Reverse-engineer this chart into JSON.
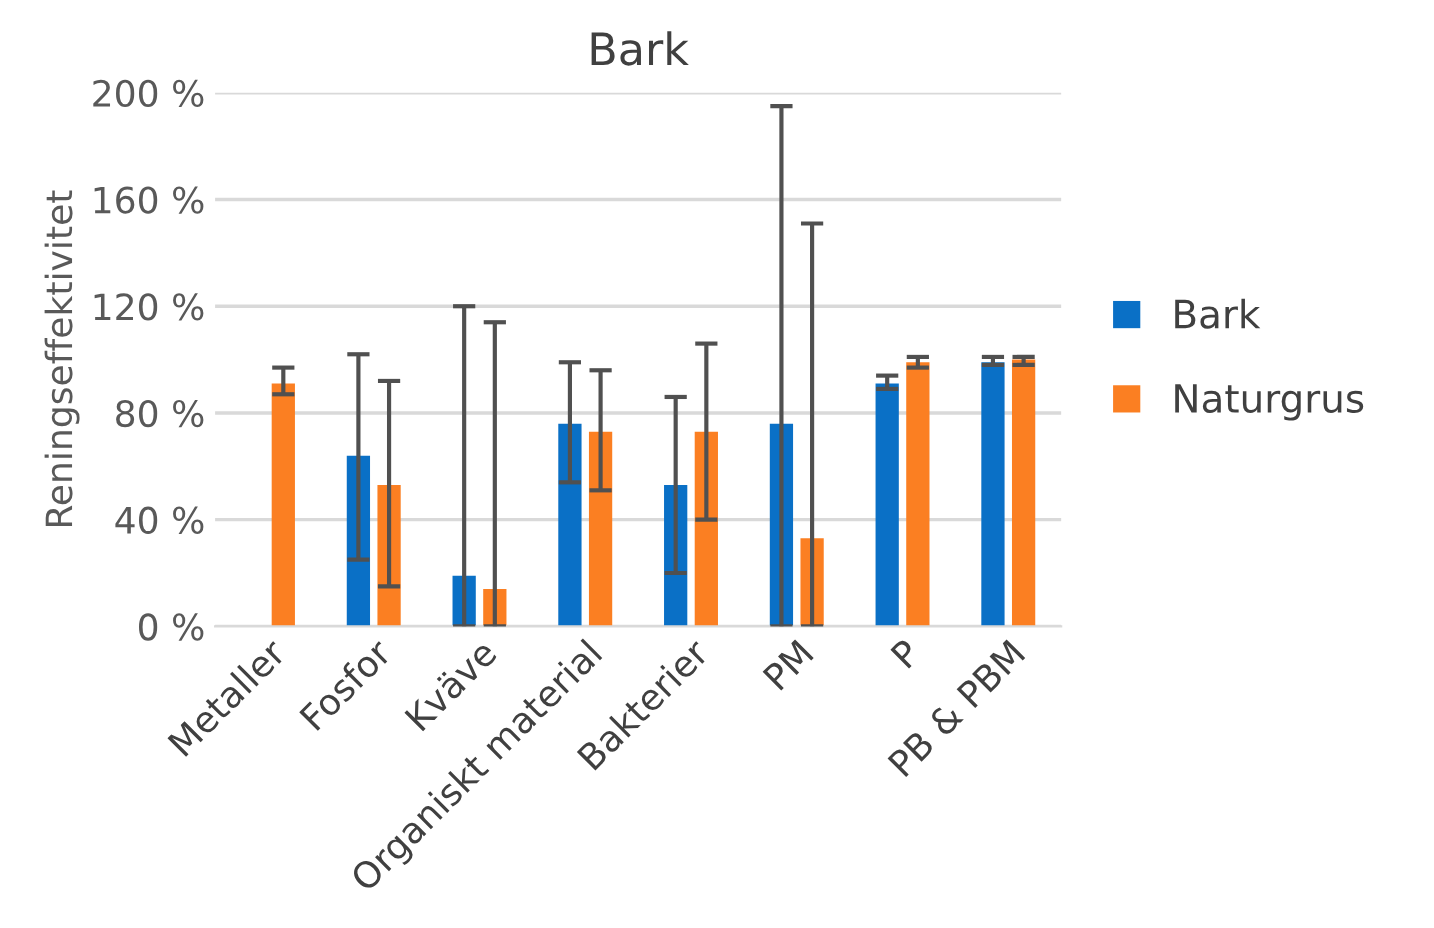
{
  "chart_data": {
    "type": "bar",
    "title": "Bark",
    "ylabel": "Reningseffektivitet",
    "categories": [
      "Metaller",
      "Fosfor",
      "Kväve",
      "Organiskt material",
      "Bakterier",
      "PM",
      "P",
      "PB & PBM"
    ],
    "series": [
      {
        "name": "Bark",
        "color": "#0a70c6",
        "values": [
          null,
          64,
          19,
          76,
          53,
          76,
          91,
          99
        ],
        "errors": [
          null,
          [
            25,
            102
          ],
          [
            0,
            120
          ],
          [
            54,
            99
          ],
          [
            20,
            86
          ],
          [
            0,
            195
          ],
          [
            89,
            94
          ],
          [
            98,
            101
          ]
        ]
      },
      {
        "name": "Naturgrus",
        "color": "#fb7f22",
        "values": [
          91,
          53,
          14,
          73,
          73,
          33,
          99,
          100
        ],
        "errors": [
          [
            87,
            97
          ],
          [
            15,
            92
          ],
          [
            0,
            114
          ],
          [
            51,
            96
          ],
          [
            40,
            106
          ],
          [
            0,
            151
          ],
          [
            97,
            101
          ],
          [
            98,
            101
          ]
        ]
      }
    ],
    "ylim": [
      0,
      200
    ],
    "yticks": [
      {
        "value": 0,
        "label": "0 %"
      },
      {
        "value": 40,
        "label": "40 %"
      },
      {
        "value": 80,
        "label": "80 %"
      },
      {
        "value": 120,
        "label": "120 %"
      },
      {
        "value": 160,
        "label": "160 %"
      },
      {
        "value": 200,
        "label": "200 %"
      }
    ],
    "grid": "y",
    "legend": "right"
  }
}
